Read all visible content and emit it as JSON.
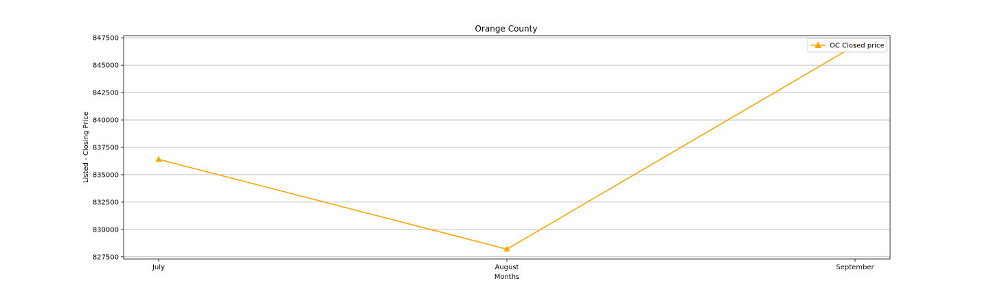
{
  "chart_data": {
    "type": "line",
    "title": "Orange County",
    "xlabel": "Months",
    "ylabel": "Listed - Closing Price",
    "categories": [
      "July",
      "August",
      "September"
    ],
    "series": [
      {
        "name": "OC Closed price",
        "values": [
          836400,
          828200,
          846800
        ],
        "color": "#ffa500",
        "marker": "triangle-up"
      }
    ],
    "ylim": [
      827300,
      847700
    ],
    "yticks": [
      827500,
      830000,
      832500,
      835000,
      837500,
      840000,
      842500,
      845000,
      847500
    ],
    "ytick_labels": [
      "827500",
      "830000",
      "832500",
      "835000",
      "837500",
      "840000",
      "842500",
      "845000",
      "847500"
    ],
    "grid": "y",
    "legend": "top-right"
  }
}
